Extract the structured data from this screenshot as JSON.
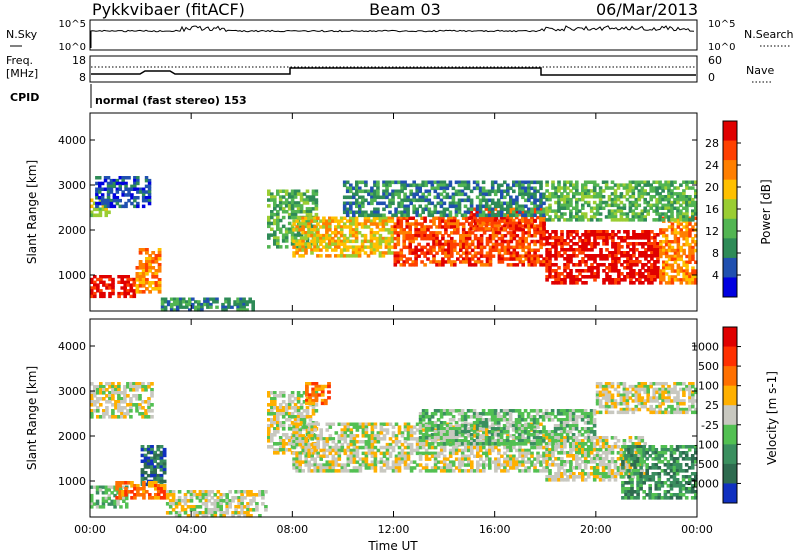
{
  "header": {
    "station": "Pykkvibaer (fitACF)",
    "beam": "Beam 03",
    "date": "06/Mar/2013"
  },
  "status_panels": {
    "nsky_label": "N.Sky",
    "nsky_ticks": [
      "10^5",
      "10^0"
    ],
    "nsearch_label": "N.Search",
    "nsearch_ticks": [
      "10^5",
      "10^0"
    ],
    "freq_label_line1": "Freq.",
    "freq_label_line2": "[MHz]",
    "freq_ticks": [
      "18",
      "8"
    ],
    "nave_label": "Nave",
    "nave_ticks": [
      "60",
      "0"
    ],
    "cpid_label": "CPID",
    "cpid_text": "normal (fast stereo) 153"
  },
  "chart_data": [
    {
      "type": "heatmap",
      "name": "power",
      "ylabel": "Slant Range [km]",
      "y_ticks": [
        "4000",
        "3000",
        "2000",
        "1000"
      ],
      "ylim": [
        200,
        4600
      ],
      "colorbar_label": "Power [dB]",
      "colorbar_ticks": [
        "28",
        "24",
        "20",
        "16",
        "12",
        "8",
        "4"
      ],
      "colorbar_colors": [
        "#0000e0",
        "#2050b0",
        "#2e8b57",
        "#52b552",
        "#9acd32",
        "#ffc000",
        "#ff7f00",
        "#ff4000",
        "#e00000"
      ],
      "bands": [
        {
          "start": 0.0,
          "end": 0.8,
          "low": 2300,
          "high": 2700,
          "level": 4
        },
        {
          "start": 0.2,
          "end": 2.4,
          "low": 2500,
          "high": 3200,
          "level": 1
        },
        {
          "start": 0.0,
          "end": 1.8,
          "low": 500,
          "high": 1000,
          "level": 8
        },
        {
          "start": 1.8,
          "end": 2.8,
          "low": 600,
          "high": 1600,
          "level": 6
        },
        {
          "start": 2.8,
          "end": 6.5,
          "low": 200,
          "high": 500,
          "level": 2
        },
        {
          "start": 7.0,
          "end": 9.0,
          "low": 1600,
          "high": 2900,
          "level": 3
        },
        {
          "start": 8.0,
          "end": 12.0,
          "low": 1400,
          "high": 2300,
          "level": 5
        },
        {
          "start": 12.0,
          "end": 18.0,
          "low": 1200,
          "high": 2300,
          "level": 7
        },
        {
          "start": 15.0,
          "end": 18.0,
          "low": 2000,
          "high": 2500,
          "level": 7
        },
        {
          "start": 10.0,
          "end": 18.0,
          "low": 2300,
          "high": 3100,
          "level": 2
        },
        {
          "start": 18.0,
          "end": 22.5,
          "low": 800,
          "high": 2000,
          "level": 8
        },
        {
          "start": 22.5,
          "end": 24.0,
          "low": 800,
          "high": 2300,
          "level": 6
        },
        {
          "start": 18.0,
          "end": 24.0,
          "low": 2200,
          "high": 3100,
          "level": 3
        }
      ]
    },
    {
      "type": "heatmap",
      "name": "velocity",
      "ylabel": "Slant Range [km]",
      "xlabel": "Time UT",
      "y_ticks": [
        "4000",
        "3000",
        "2000",
        "1000"
      ],
      "ylim": [
        200,
        4600
      ],
      "x_ticks": [
        "00:00",
        "04:00",
        "08:00",
        "12:00",
        "16:00",
        "20:00",
        "00:00"
      ],
      "xlim_hours": [
        0,
        24
      ],
      "colorbar_label": "Velocity [m s-1]",
      "colorbar_ticks": [
        "1000",
        "500",
        "100",
        "25",
        "-25",
        "-100",
        "-500",
        "-1000"
      ],
      "colorbar_colors": [
        "#1030c0",
        "#2e6b4f",
        "#3a8f5f",
        "#52c052",
        "#c8c8c0",
        "#ffb000",
        "#ff7000",
        "#ff3000",
        "#e00000"
      ],
      "bands": [
        {
          "start": 0.0,
          "end": 2.5,
          "low": 2400,
          "high": 3200,
          "level": 4
        },
        {
          "start": 2.0,
          "end": 3.0,
          "low": 900,
          "high": 1800,
          "level": 1
        },
        {
          "start": 0.0,
          "end": 1.5,
          "low": 400,
          "high": 900,
          "level": 3
        },
        {
          "start": 1.0,
          "end": 3.0,
          "low": 600,
          "high": 1000,
          "level": 6
        },
        {
          "start": 3.0,
          "end": 7.0,
          "low": 200,
          "high": 800,
          "level": 4
        },
        {
          "start": 7.0,
          "end": 9.0,
          "low": 1600,
          "high": 3000,
          "level": 4
        },
        {
          "start": 8.0,
          "end": 18.0,
          "low": 1200,
          "high": 2300,
          "level": 4
        },
        {
          "start": 8.5,
          "end": 9.5,
          "low": 2700,
          "high": 3200,
          "level": 6
        },
        {
          "start": 13.0,
          "end": 20.0,
          "low": 1800,
          "high": 2600,
          "level": 3
        },
        {
          "start": 18.0,
          "end": 22.0,
          "low": 1000,
          "high": 2000,
          "level": 4
        },
        {
          "start": 21.0,
          "end": 24.0,
          "low": 600,
          "high": 1800,
          "level": 2
        },
        {
          "start": 20.0,
          "end": 24.0,
          "low": 2500,
          "high": 3200,
          "level": 4
        }
      ]
    }
  ]
}
